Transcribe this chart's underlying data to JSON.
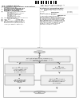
{
  "page_bg": "#ffffff",
  "text_color": "#444444",
  "dark_text": "#222222",
  "light_gray": "#cccccc",
  "med_gray": "#aaaaaa",
  "box_fill": "#e8e8e8",
  "box_fill2": "#d8d8d8",
  "box_border": "#888888",
  "diagram_bg": "#f0f0f0",
  "diagram_border": "#999999",
  "header_bar_color": "#dddddd",
  "barcode_color": "#111111"
}
